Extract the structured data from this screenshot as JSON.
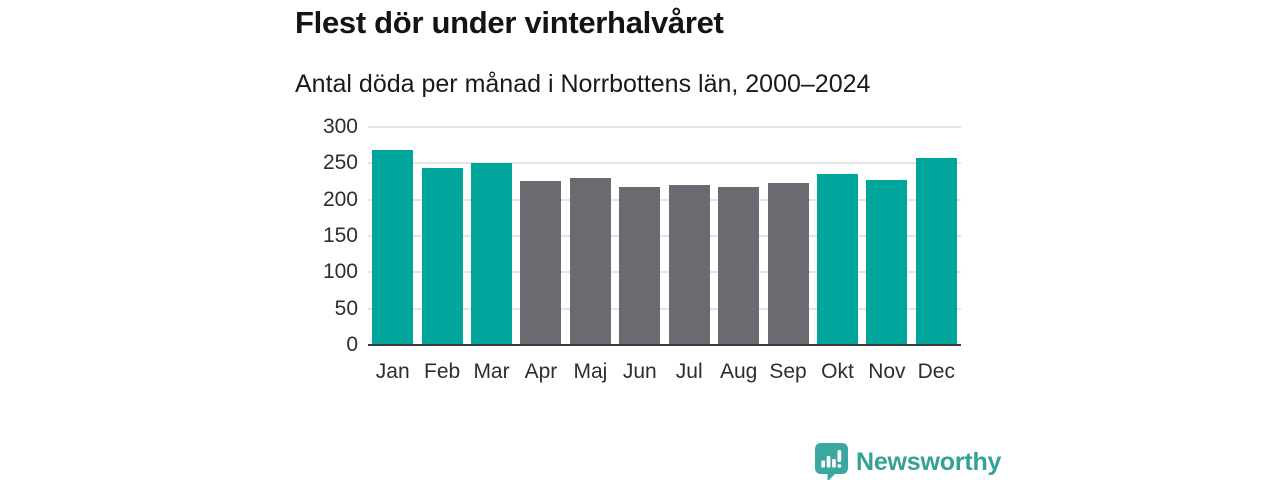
{
  "chart_data": {
    "type": "bar",
    "title": "Flest dör under vinterhalvåret",
    "subtitle": "Antal döda per månad i Norrbottens län, 2000–2024",
    "categories": [
      "Jan",
      "Feb",
      "Mar",
      "Apr",
      "Maj",
      "Jun",
      "Jul",
      "Aug",
      "Sep",
      "Okt",
      "Nov",
      "Dec"
    ],
    "values": [
      269,
      244,
      250,
      226,
      230,
      217,
      220,
      217,
      223,
      236,
      227,
      257
    ],
    "highlight_categories": [
      "Jan",
      "Feb",
      "Mar",
      "Okt",
      "Nov",
      "Dec"
    ],
    "colors": {
      "winter_bar": "#00A69C",
      "summer_bar": "#6C6A70",
      "gridline": "#E4E4E4",
      "axis_line": "#3C3C3C"
    },
    "xlabel": "",
    "ylabel": "",
    "ylim": [
      0,
      300
    ],
    "yticks": [
      0,
      50,
      100,
      150,
      200,
      250,
      300
    ],
    "grid": true,
    "legend_position": "none"
  },
  "branding": {
    "name": "Newsworthy",
    "logo_icon": "bar-chart-speech-bubble-icon",
    "text_color": "#35A096",
    "icon_color": "#3BA89F"
  }
}
